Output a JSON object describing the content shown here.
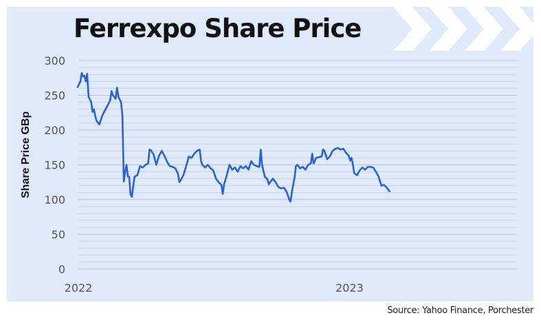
{
  "title": "Ferrexpo Share Price",
  "source": "Source: Yahoo Finance, Porchester",
  "colors": {
    "background": "#dfeafc",
    "line": "#2a62d4",
    "grid": "#c8d2e4",
    "chevrons": "#ffffff"
  },
  "decoration": {
    "icon": "chevron-right-icon",
    "count": 4
  },
  "chart_data": {
    "type": "line",
    "title": "Ferrexpo Share Price",
    "xlabel": "",
    "ylabel": "Share Price GBp",
    "x_tick_labels": [
      {
        "label": "2022",
        "x": 2022.0
      },
      {
        "label": "2023",
        "x": 2023.0
      }
    ],
    "y_tick_labels": [
      "0",
      "50",
      "100",
      "150",
      "200",
      "250",
      "300"
    ],
    "ylim": [
      0,
      300
    ],
    "xlim": [
      2022.0,
      2023.62
    ],
    "grid": true,
    "minor_gridlines_every": 10,
    "series": [
      {
        "values": [
          [
            2022.0,
            262
          ],
          [
            2022.01,
            270
          ],
          [
            2022.015,
            282
          ],
          [
            2022.02,
            277
          ],
          [
            2022.025,
            278
          ],
          [
            2022.03,
            270
          ],
          [
            2022.035,
            281
          ],
          [
            2022.04,
            248
          ],
          [
            2022.05,
            240
          ],
          [
            2022.055,
            226
          ],
          [
            2022.06,
            230
          ],
          [
            2022.065,
            220
          ],
          [
            2022.07,
            213
          ],
          [
            2022.08,
            208
          ],
          [
            2022.09,
            220
          ],
          [
            2022.1,
            228
          ],
          [
            2022.11,
            235
          ],
          [
            2022.12,
            243
          ],
          [
            2022.125,
            256
          ],
          [
            2022.13,
            250
          ],
          [
            2022.14,
            245
          ],
          [
            2022.145,
            261
          ],
          [
            2022.15,
            248
          ],
          [
            2022.16,
            240
          ],
          [
            2022.165,
            220
          ],
          [
            2022.17,
            126
          ],
          [
            2022.175,
            140
          ],
          [
            2022.18,
            150
          ],
          [
            2022.185,
            133
          ],
          [
            2022.19,
            133
          ],
          [
            2022.195,
            107
          ],
          [
            2022.2,
            104
          ],
          [
            2022.205,
            120
          ],
          [
            2022.21,
            133
          ],
          [
            2022.22,
            135
          ],
          [
            2022.23,
            148
          ],
          [
            2022.24,
            146
          ],
          [
            2022.25,
            150
          ],
          [
            2022.26,
            152
          ],
          [
            2022.265,
            172
          ],
          [
            2022.27,
            171
          ],
          [
            2022.28,
            165
          ],
          [
            2022.285,
            157
          ],
          [
            2022.29,
            150
          ],
          [
            2022.3,
            163
          ],
          [
            2022.31,
            170
          ],
          [
            2022.32,
            163
          ],
          [
            2022.33,
            154
          ],
          [
            2022.34,
            148
          ],
          [
            2022.35,
            147
          ],
          [
            2022.36,
            145
          ],
          [
            2022.37,
            137
          ],
          [
            2022.375,
            125
          ],
          [
            2022.38,
            128
          ],
          [
            2022.39,
            135
          ],
          [
            2022.4,
            148
          ],
          [
            2022.41,
            162
          ],
          [
            2022.42,
            160
          ],
          [
            2022.43,
            166
          ],
          [
            2022.44,
            170
          ],
          [
            2022.45,
            172
          ],
          [
            2022.455,
            155
          ],
          [
            2022.46,
            150
          ],
          [
            2022.47,
            146
          ],
          [
            2022.48,
            150
          ],
          [
            2022.49,
            145
          ],
          [
            2022.5,
            142
          ],
          [
            2022.51,
            130
          ],
          [
            2022.52,
            125
          ],
          [
            2022.53,
            121
          ],
          [
            2022.535,
            108
          ],
          [
            2022.54,
            122
          ],
          [
            2022.55,
            135
          ],
          [
            2022.56,
            150
          ],
          [
            2022.57,
            143
          ],
          [
            2022.58,
            146
          ],
          [
            2022.59,
            140
          ],
          [
            2022.6,
            148
          ],
          [
            2022.61,
            145
          ],
          [
            2022.62,
            148
          ],
          [
            2022.63,
            143
          ],
          [
            2022.64,
            155
          ],
          [
            2022.65,
            150
          ],
          [
            2022.66,
            148
          ],
          [
            2022.67,
            147
          ],
          [
            2022.675,
            172
          ],
          [
            2022.68,
            150
          ],
          [
            2022.69,
            133
          ],
          [
            2022.7,
            129
          ],
          [
            2022.705,
            122
          ],
          [
            2022.71,
            125
          ],
          [
            2022.72,
            130
          ],
          [
            2022.73,
            125
          ],
          [
            2022.74,
            118
          ],
          [
            2022.75,
            116
          ],
          [
            2022.76,
            117
          ],
          [
            2022.77,
            112
          ],
          [
            2022.78,
            100
          ],
          [
            2022.785,
            97
          ],
          [
            2022.79,
            111
          ],
          [
            2022.8,
            132
          ],
          [
            2022.805,
            148
          ],
          [
            2022.81,
            150
          ],
          [
            2022.82,
            145
          ],
          [
            2022.83,
            147
          ],
          [
            2022.84,
            143
          ],
          [
            2022.85,
            150
          ],
          [
            2022.86,
            152
          ],
          [
            2022.865,
            166
          ],
          [
            2022.87,
            152
          ],
          [
            2022.88,
            160
          ],
          [
            2022.89,
            161
          ],
          [
            2022.9,
            162
          ],
          [
            2022.905,
            172
          ],
          [
            2022.91,
            170
          ],
          [
            2022.92,
            158
          ],
          [
            2022.93,
            162
          ],
          [
            2022.94,
            170
          ],
          [
            2022.95,
            173
          ],
          [
            2022.96,
            174
          ],
          [
            2022.97,
            172
          ],
          [
            2022.98,
            173
          ],
          [
            2022.99,
            167
          ],
          [
            2023.0,
            163
          ],
          [
            2023.005,
            156
          ],
          [
            2023.01,
            160
          ],
          [
            2023.015,
            150
          ],
          [
            2023.02,
            138
          ],
          [
            2023.03,
            135
          ],
          [
            2023.04,
            142
          ],
          [
            2023.05,
            146
          ],
          [
            2023.06,
            143
          ],
          [
            2023.07,
            147
          ],
          [
            2023.08,
            147
          ],
          [
            2023.09,
            146
          ],
          [
            2023.1,
            140
          ],
          [
            2023.11,
            133
          ],
          [
            2023.12,
            120
          ],
          [
            2023.13,
            121
          ],
          [
            2023.14,
            117
          ],
          [
            2023.15,
            112
          ]
        ]
      }
    ]
  }
}
